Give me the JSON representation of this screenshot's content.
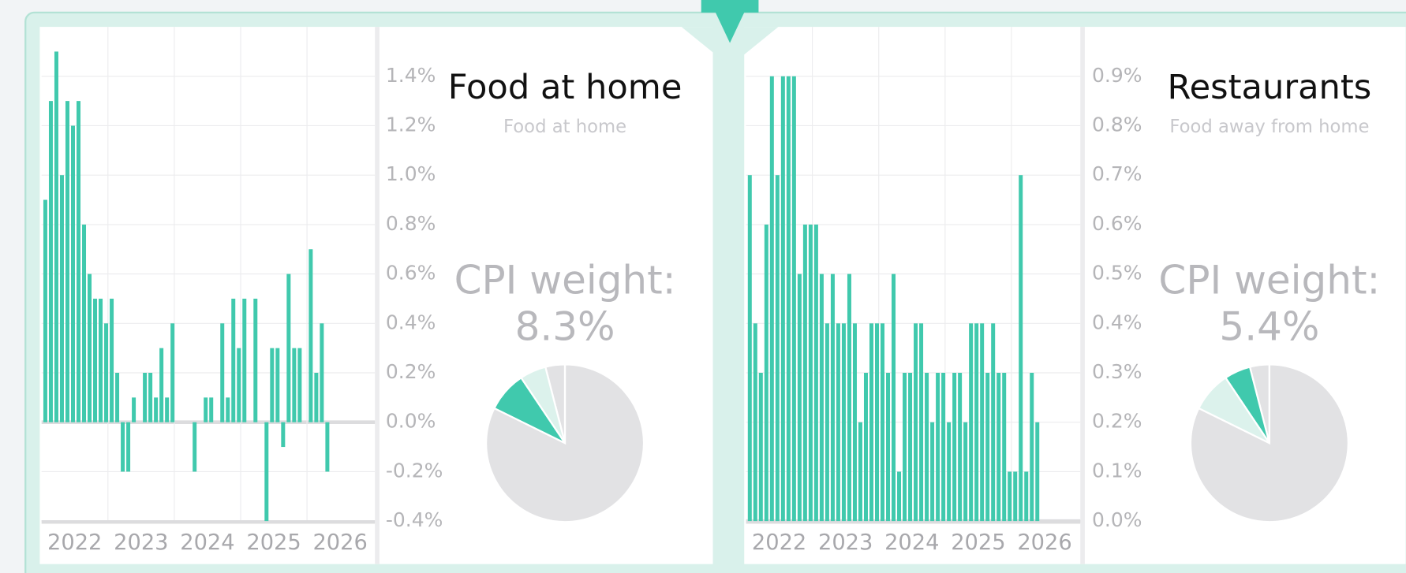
{
  "chart_data": [
    {
      "type": "bar",
      "title": "Food at home",
      "subtitle": "Food at home",
      "color": "#40c9ad",
      "values": [
        0.9,
        1.3,
        1.5,
        1.0,
        1.3,
        1.2,
        1.3,
        0.8,
        0.6,
        0.5,
        0.5,
        0.4,
        0.5,
        0.2,
        -0.2,
        -0.2,
        0.1,
        0.0,
        0.2,
        0.2,
        0.1,
        0.3,
        0.1,
        0.4,
        0.0,
        0.0,
        0.0,
        -0.2,
        0.0,
        0.1,
        0.1,
        0.0,
        0.4,
        0.1,
        0.5,
        0.3,
        0.5,
        0.0,
        0.5,
        0.0,
        -0.4,
        0.3,
        0.3,
        -0.1,
        0.6,
        0.3,
        0.3,
        0.0,
        0.7,
        0.2,
        0.4,
        -0.2
      ],
      "ylim": [
        -0.4,
        1.6
      ],
      "yticks": [
        {
          "value": -0.4,
          "label": "-0.4%"
        },
        {
          "value": -0.2,
          "label": "-0.2%"
        },
        {
          "value": 0.0,
          "label": "0.0%"
        },
        {
          "value": 0.2,
          "label": "0.2%"
        },
        {
          "value": 0.4,
          "label": "0.4%"
        },
        {
          "value": 0.6,
          "label": "0.6%"
        },
        {
          "value": 0.8,
          "label": "0.8%"
        },
        {
          "value": 1.0,
          "label": "1.0%"
        },
        {
          "value": 1.2,
          "label": "1.2%"
        },
        {
          "value": 1.4,
          "label": "1.4%"
        }
      ],
      "xtick_labels": [
        "2022",
        "2023",
        "2024",
        "2025",
        "2026"
      ],
      "weight_label": "CPI weight:",
      "weight": "8.3%",
      "pie_values": [
        4,
        5.4,
        8.3,
        82.3
      ],
      "pie_colors": [
        "#e2e2e4",
        "#dcf2ec",
        "#40c9ad",
        "#e2e2e4"
      ]
    },
    {
      "type": "bar",
      "title": "Restaurants",
      "subtitle": "Food away from home",
      "color": "#40c9ad",
      "values": [
        0.7,
        0.4,
        0.3,
        0.6,
        0.9,
        0.7,
        0.9,
        0.9,
        0.9,
        0.5,
        0.6,
        0.6,
        0.6,
        0.5,
        0.4,
        0.5,
        0.4,
        0.4,
        0.5,
        0.4,
        0.2,
        0.3,
        0.4,
        0.4,
        0.4,
        0.3,
        0.5,
        0.1,
        0.3,
        0.3,
        0.4,
        0.4,
        0.3,
        0.2,
        0.3,
        0.3,
        0.2,
        0.3,
        0.3,
        0.2,
        0.4,
        0.4,
        0.4,
        0.3,
        0.4,
        0.3,
        0.3,
        0.1,
        0.1,
        0.7,
        0.1,
        0.3,
        0.2
      ],
      "ylim": [
        0.0,
        1.0
      ],
      "yticks": [
        {
          "value": 0.0,
          "label": "0.0%"
        },
        {
          "value": 0.1,
          "label": "0.1%"
        },
        {
          "value": 0.2,
          "label": "0.2%"
        },
        {
          "value": 0.3,
          "label": "0.3%"
        },
        {
          "value": 0.4,
          "label": "0.4%"
        },
        {
          "value": 0.5,
          "label": "0.5%"
        },
        {
          "value": 0.6,
          "label": "0.6%"
        },
        {
          "value": 0.7,
          "label": "0.7%"
        },
        {
          "value": 0.8,
          "label": "0.8%"
        },
        {
          "value": 0.9,
          "label": "0.9%"
        }
      ],
      "xtick_labels": [
        "2022",
        "2023",
        "2024",
        "2025",
        "2026"
      ],
      "weight_label": "CPI weight:",
      "weight": "5.4%",
      "pie_values": [
        4,
        5.4,
        8.3,
        82.3
      ],
      "pie_colors": [
        "#e2e2e4",
        "#40c9ad",
        "#dcf2ec",
        "#e2e2e4"
      ]
    }
  ]
}
